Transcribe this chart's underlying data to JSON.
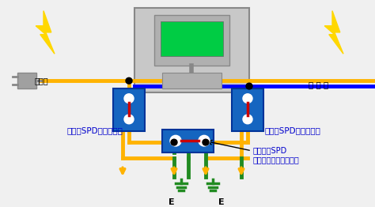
{
  "bg_color": "#f0f0f0",
  "lightning_color": "#FFD700",
  "wire_yellow": "#FFB300",
  "wire_green": "#228B22",
  "wire_gray": "#A0A0A0",
  "wire_blue": "#0000FF",
  "spd_blue": "#1565C0",
  "spd_red": "#CC0000",
  "computer_box_color": "#C8C8C8",
  "computer_screen_color": "#00CC44",
  "plug_color": "#A0A0A0",
  "text_blue": "#0000CC",
  "text_black": "#000000",
  "label_dengen": "電源線",
  "label_tsushin": "通 信 線",
  "label_spd_dengen": "電源用SPD（避雷器）",
  "label_spd_tsushin": "通信用SPD（避雷器）",
  "label_spd_setchi": "接地間用SPD",
  "label_spd_earth": "（アースバランサー）",
  "label_E": "E"
}
